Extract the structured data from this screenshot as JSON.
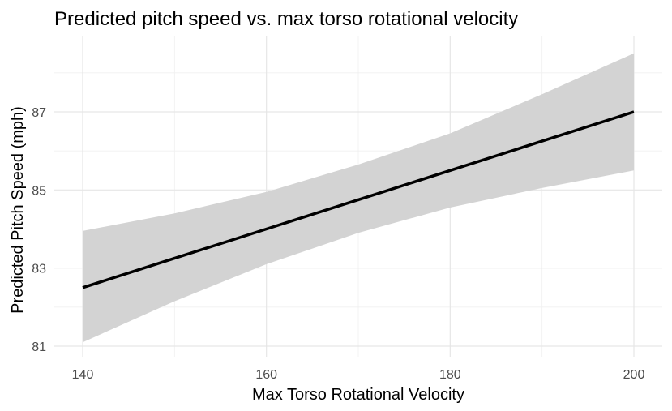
{
  "chart_data": {
    "type": "line",
    "title": "Predicted pitch speed vs. max torso rotational velocity",
    "xlabel": "Max Torso Rotational Velocity",
    "ylabel": "Predicted Pitch Speed (mph)",
    "xlim": [
      135,
      202
    ],
    "ylim": [
      80.8,
      88.5
    ],
    "x_ticks": [
      140,
      160,
      180,
      200
    ],
    "y_ticks": [
      81,
      83,
      85,
      87
    ],
    "grid": true,
    "legend": "none",
    "colors": {
      "line": "#000000",
      "ribbon": "#d3d3d3"
    },
    "series": [
      {
        "x": [
          140,
          150,
          160,
          170,
          180,
          190,
          200
        ],
        "y": [
          82.5,
          83.25,
          84.0,
          84.75,
          85.5,
          86.25,
          87.0
        ],
        "lower": [
          81.1,
          82.15,
          83.1,
          83.9,
          84.55,
          85.05,
          85.5
        ],
        "upper": [
          83.95,
          84.4,
          84.95,
          85.65,
          86.45,
          87.45,
          88.5
        ]
      }
    ]
  }
}
